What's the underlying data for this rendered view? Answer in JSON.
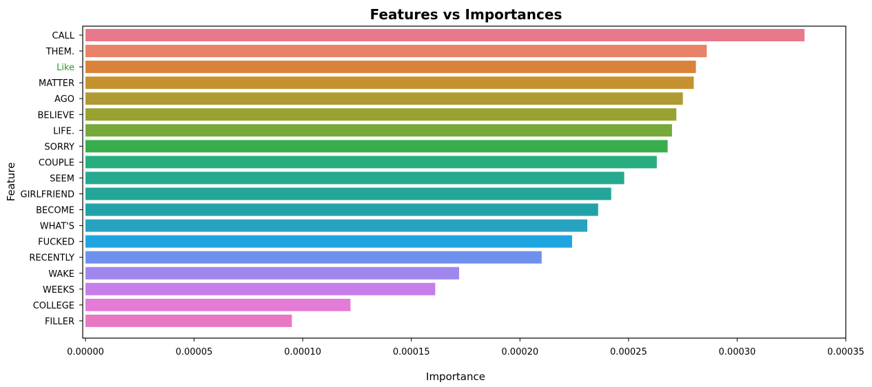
{
  "chart_data": {
    "type": "bar",
    "orientation": "horizontal",
    "title": "Features vs Importances",
    "xlabel": "Importance",
    "ylabel": "Feature",
    "xlim": [
      0,
      0.00035
    ],
    "x_ticks": [
      "0.00000",
      "0.00005",
      "0.00010",
      "0.00015",
      "0.00020",
      "0.00025",
      "0.00030",
      "0.00035"
    ],
    "grid": false,
    "categories": [
      "CALL",
      "THEM.",
      "Like",
      "MATTER",
      "AGO",
      "BELIEVE",
      "LIFE.",
      "SORRY",
      "COUPLE",
      "SEEM",
      "GIRLFRIEND",
      "BECOME",
      "WHAT'S",
      "FUCKED",
      "RECENTLY",
      "WAKE",
      "WEEKS",
      "COLLEGE",
      "FILLER"
    ],
    "values": [
      0.000331,
      0.000286,
      0.000281,
      0.00028,
      0.000275,
      0.000272,
      0.00027,
      0.000268,
      0.000263,
      0.000248,
      0.000242,
      0.000236,
      0.000231,
      0.000224,
      0.00021,
      0.000172,
      0.000161,
      0.000122,
      9.5e-05
    ],
    "bar_colors": [
      "#e8798a",
      "#e88268",
      "#d9823a",
      "#c5922f",
      "#b09a34",
      "#98a231",
      "#76a93a",
      "#38ad4b",
      "#27ad7e",
      "#25aa8f",
      "#23a698",
      "#22a2a8",
      "#27a3c0",
      "#1da5e2",
      "#6f91ee",
      "#a087ee",
      "#c57ee9",
      "#e27cd7",
      "#e878c3"
    ],
    "highlighted_label": "Like",
    "highlight_color": "#2a9a2a"
  }
}
